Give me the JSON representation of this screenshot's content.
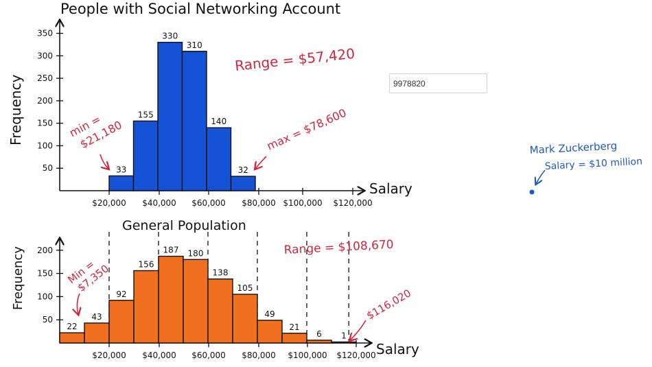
{
  "input": {
    "value": "9978820"
  },
  "chart_data": [
    {
      "type": "bar",
      "title": "People with Social Networking Account",
      "ylabel": "Frequency",
      "xlabel": "Salary",
      "x_ticks": [
        "$20,000",
        "$40,000",
        "$60,000",
        "$80,000",
        "$100,000",
        "$120,000"
      ],
      "y_ticks": [
        50,
        100,
        150,
        200,
        250,
        300,
        350
      ],
      "ylim": [
        0,
        360
      ],
      "bins": [
        {
          "from": 20000,
          "to": 30000,
          "value": 33,
          "label": "33"
        },
        {
          "from": 30000,
          "to": 40000,
          "value": 155,
          "label": "155"
        },
        {
          "from": 40000,
          "to": 50000,
          "value": 330,
          "label": "330"
        },
        {
          "from": 50000,
          "to": 60000,
          "value": 310,
          "label": "310"
        },
        {
          "from": 60000,
          "to": 70000,
          "value": 140,
          "label": "140"
        },
        {
          "from": 70000,
          "to": 80000,
          "value": 32,
          "label": "32"
        }
      ],
      "color": "#1452d6",
      "annotations": {
        "range": "Range = $57,420",
        "min": [
          "min =",
          "$21,180"
        ],
        "max": "max = $78,600"
      }
    },
    {
      "type": "bar",
      "title": "General Population",
      "ylabel": "Frequency",
      "xlabel": "Salary",
      "x_ticks": [
        "$20,000",
        "$40,000",
        "$60,000",
        "$80,000",
        "$100,000",
        "$120,000"
      ],
      "y_ticks": [
        50,
        100,
        150,
        200
      ],
      "ylim": [
        0,
        210
      ],
      "bins": [
        {
          "from": 0,
          "to": 10000,
          "value": 22,
          "label": "22"
        },
        {
          "from": 10000,
          "to": 20000,
          "value": 43,
          "label": "43"
        },
        {
          "from": 20000,
          "to": 30000,
          "value": 92,
          "label": "92"
        },
        {
          "from": 30000,
          "to": 40000,
          "value": 156,
          "label": "156"
        },
        {
          "from": 40000,
          "to": 50000,
          "value": 187,
          "label": "187"
        },
        {
          "from": 50000,
          "to": 60000,
          "value": 180,
          "label": "180"
        },
        {
          "from": 60000,
          "to": 70000,
          "value": 138,
          "label": "138"
        },
        {
          "from": 70000,
          "to": 80000,
          "value": 105,
          "label": "105"
        },
        {
          "from": 80000,
          "to": 90000,
          "value": 49,
          "label": "49"
        },
        {
          "from": 90000,
          "to": 100000,
          "value": 21,
          "label": "21"
        },
        {
          "from": 100000,
          "to": 110000,
          "value": 6,
          "label": "6"
        },
        {
          "from": 110000,
          "to": 120000,
          "value": 1,
          "label": "1"
        }
      ],
      "dashed_lines_at": [
        20000,
        40000,
        60000,
        80000,
        100000,
        117000
      ],
      "color": "#f0701f",
      "annotations": {
        "range": "Range = $108,670",
        "min": [
          "Min =",
          "$7,350"
        ],
        "max": "$116,020"
      }
    }
  ],
  "side_note": {
    "line1": "Mark Zuckerberg",
    "line2": "Salary = $10 million"
  },
  "colors": {
    "annotation_red": "#d0263c",
    "annotation_blue": "#1f57c6",
    "axis": "#111111"
  }
}
